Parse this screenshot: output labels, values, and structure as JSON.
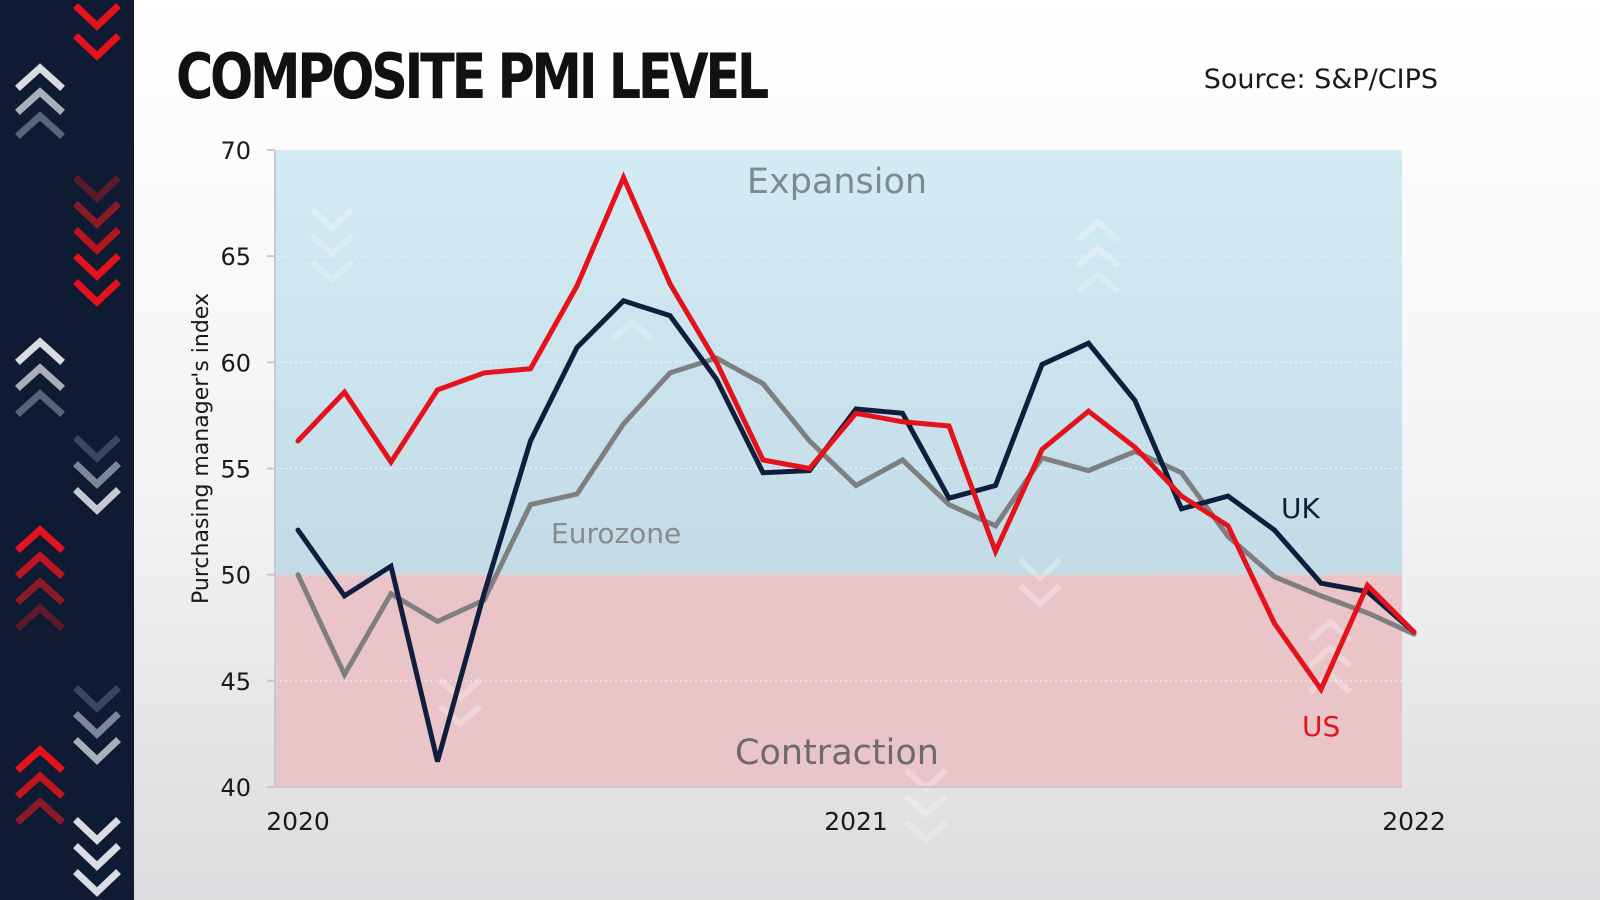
{
  "title": "COMPOSITE PMI LEVEL",
  "source": "Source: S&P/CIPS",
  "colors": {
    "uk": "#0f1e3d",
    "eurozone": "#7f7f7f",
    "us": "#e3121b",
    "expansion": "#c9e3ef",
    "contraction": "#e9c5c9",
    "strip": "#0f1a33"
  },
  "chart_data": {
    "type": "line",
    "ylabel": "Purchasing manager's index",
    "xlabel": "",
    "ylim": [
      40,
      70
    ],
    "yticks": [
      40,
      45,
      50,
      55,
      60,
      65,
      70
    ],
    "x": [
      "2020-01",
      "2020-02",
      "2020-03",
      "2020-04",
      "2020-05",
      "2020-06",
      "2020-07",
      "2020-08",
      "2020-09",
      "2020-10",
      "2020-11",
      "2020-12",
      "2021-01",
      "2021-02",
      "2021-03",
      "2021-04",
      "2021-05",
      "2021-06",
      "2021-07",
      "2021-08",
      "2021-09",
      "2021-10",
      "2021-11",
      "2021-12",
      "2022-01"
    ],
    "xtick_labels": [
      {
        "x": "2020-01",
        "label": "2020"
      },
      {
        "x": "2021-01",
        "label": "2021"
      },
      {
        "x": "2022-01",
        "label": "2022"
      }
    ],
    "threshold": 50,
    "regions": [
      {
        "label": "Expansion",
        "from": 50,
        "to": 70
      },
      {
        "label": "Contraction",
        "from": 40,
        "to": 50
      }
    ],
    "series": [
      {
        "name": "UK",
        "key": "uk",
        "values": [
          52.1,
          49.0,
          50.4,
          41.2,
          49.1,
          56.3,
          60.7,
          62.9,
          62.2,
          59.2,
          54.8,
          54.9,
          57.8,
          57.6,
          53.6,
          54.2,
          59.9,
          60.9,
          58.2,
          53.1,
          53.7,
          52.1,
          49.6,
          49.2,
          47.3
        ]
      },
      {
        "name": "Eurozone",
        "key": "eurozone",
        "values": [
          50.0,
          45.3,
          49.1,
          47.8,
          48.8,
          53.3,
          53.8,
          57.1,
          59.5,
          60.2,
          59.0,
          56.3,
          54.2,
          55.4,
          53.3,
          52.3,
          55.5,
          54.9,
          55.8,
          54.8,
          51.8,
          49.9,
          49.0,
          48.2,
          47.2
        ]
      },
      {
        "name": "US",
        "key": "us",
        "values": [
          56.3,
          58.6,
          55.3,
          58.7,
          59.5,
          59.7,
          63.6,
          68.7,
          63.7,
          60.0,
          55.4,
          55.0,
          57.6,
          57.2,
          57.0,
          51.1,
          55.9,
          57.7,
          56.0,
          53.7,
          52.3,
          47.7,
          44.6,
          49.5,
          47.3
        ]
      }
    ],
    "region_labels": [
      "Expansion",
      "Contraction"
    ],
    "series_labels": [
      "UK",
      "Eurozone",
      "US"
    ],
    "grid": true
  }
}
